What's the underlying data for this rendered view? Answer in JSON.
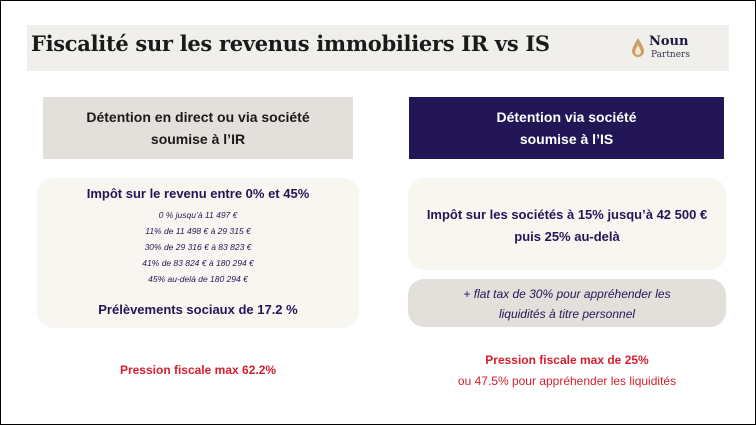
{
  "title": "Fiscalité sur les revenus immobiliers IR vs IS",
  "logo": {
    "word": "Noun",
    "sub": "Partners",
    "colors": {
      "drop": "#c9a06a",
      "text": "#1d1942"
    }
  },
  "left": {
    "header_line1": "Détention en direct ou via société",
    "header_line2": "soumise à l’IR",
    "income_tax_heading": "Impôt sur le revenu entre 0% et 45%",
    "brackets": [
      "0 % jusqu’à 11 497 €",
      "11% de 11 498 € à 29 315 €",
      "30% de 29 316 € à 83 823 €",
      "41% de 83 824 € à 180 294 €",
      "45% au-delà de 180 294 €"
    ],
    "social_charges": "Prélèvements sociaux de 17.2 %",
    "max_pressure": "Pression fiscale max 62.2%"
  },
  "right": {
    "header_line1": "Détention via société",
    "header_line2": "soumise à l’IS",
    "corporate_tax_line1": "Impôt sur les sociétés à 15% jusqu’à 42 500 €",
    "corporate_tax_line2": "puis 25% au-delà",
    "flat_tax_line1": "+ flat tax de 30% pour appréhender les",
    "flat_tax_line2": "liquidités à titre personnel",
    "max_pressure": "Pression fiscale max de 25%",
    "max_pressure_note": "ou 47.5% pour appréhender les liquidités"
  },
  "colors": {
    "navy": "#231656",
    "beige": "#e3dfdb",
    "cream": "#f8f6f1",
    "red": "#d51f2d"
  }
}
